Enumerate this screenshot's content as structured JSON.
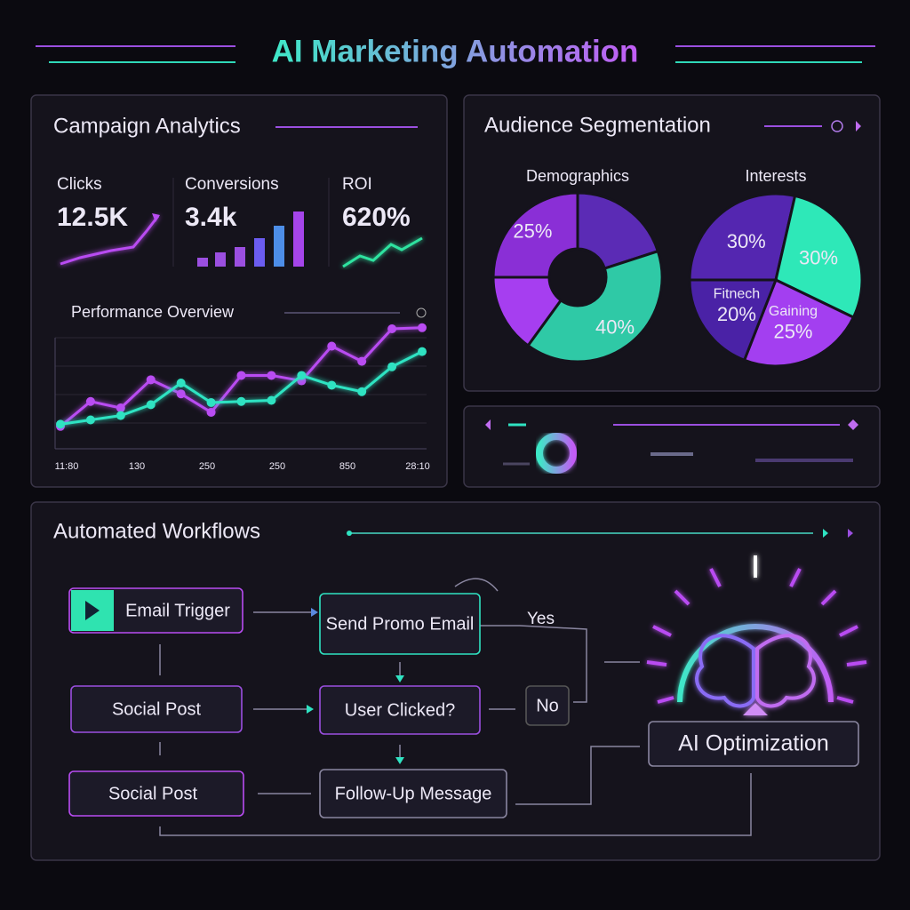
{
  "header": {
    "title": "AI Marketing Automation"
  },
  "campaign_analytics": {
    "title": "Campaign Analytics",
    "kpis": [
      {
        "label": "Clicks",
        "value": "12.5K"
      },
      {
        "label": "Conversions",
        "value": "3.4k"
      },
      {
        "label": "ROI",
        "value": "620%"
      }
    ],
    "performance": {
      "type": "line",
      "title": "Performance Overview",
      "x_labels": [
        "11:80",
        "130",
        "250",
        "250",
        "850",
        "28:10"
      ],
      "ylim": [
        0,
        100
      ],
      "series": [
        {
          "color": "#b94cf2",
          "values": [
            10,
            33,
            27,
            53,
            40,
            23,
            57,
            57,
            52,
            84,
            70,
            100,
            101
          ]
        },
        {
          "color": "#2fe3c2",
          "values": [
            12,
            16,
            20,
            30,
            50,
            32,
            33,
            34,
            57,
            48,
            42,
            65,
            79
          ]
        }
      ]
    }
  },
  "audience_segmentation": {
    "title": "Audience Segmentation",
    "pies": [
      {
        "type": "pie",
        "title": "Demographics",
        "categories": [
          null,
          null,
          null,
          null
        ],
        "values": [
          25,
          20,
          40,
          15
        ],
        "value_labels": [
          "25%",
          null,
          "40%",
          null
        ],
        "colors": [
          "#8a2fd6",
          "#5b2bb5",
          "#2fc9a6",
          "#a63ef0"
        ]
      },
      {
        "type": "pie",
        "title": "Interests",
        "categories": [
          null,
          null,
          "Gaining",
          "Fitnech"
        ],
        "values": [
          30,
          30,
          25,
          20
        ],
        "value_labels": [
          "30%",
          "30%",
          "25%",
          "20%"
        ],
        "colors": [
          "#5426b0",
          "#2ee8b8",
          "#a33ff0",
          "#4a22a6"
        ]
      }
    ]
  },
  "workflows": {
    "title": "Automated Workflows",
    "nodes": [
      "Email Trigger",
      "Send Promo Email",
      "Social Post",
      "User Clicked?",
      "No",
      "Social Post",
      "Follow-Up Message",
      "AI Optimization"
    ],
    "edge_labels": [
      "Yes"
    ]
  }
}
